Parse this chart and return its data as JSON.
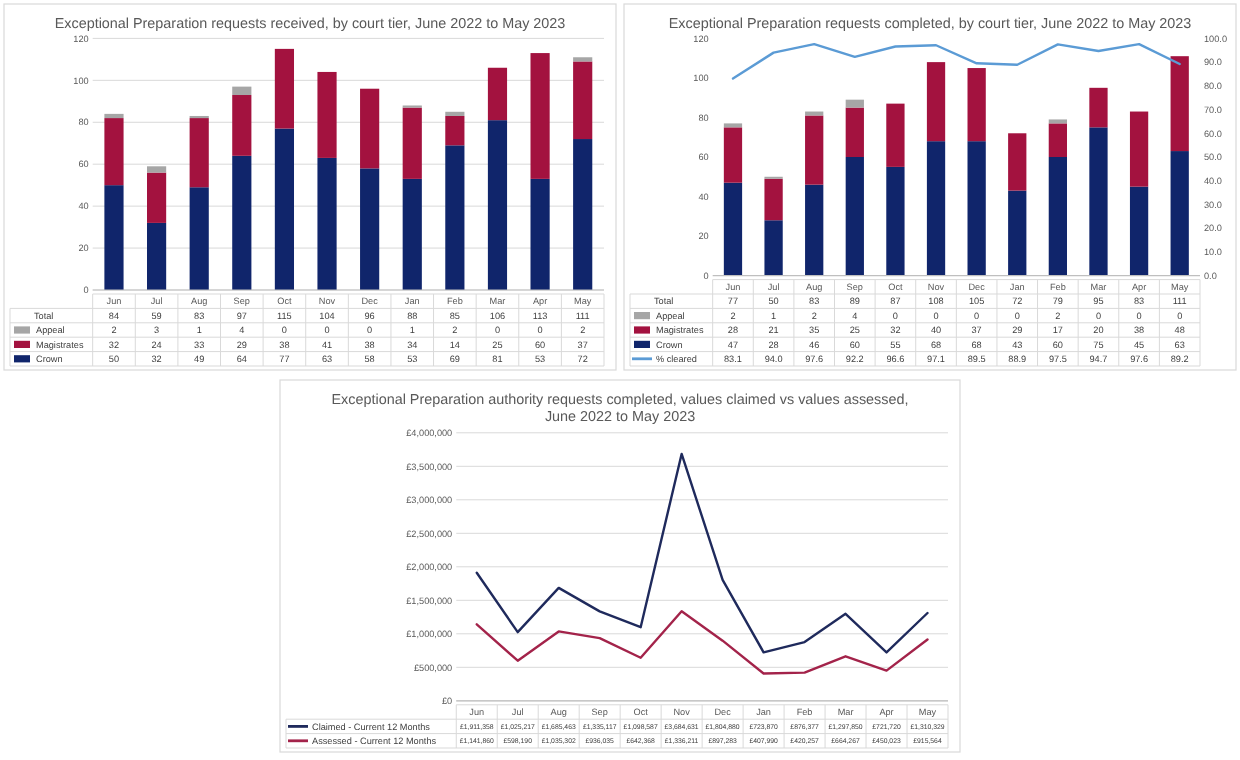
{
  "chart_data": [
    {
      "type": "bar",
      "stacked": true,
      "title": "Exceptional Preparation requests received, by court tier, June 2022 to May 2023",
      "categories": [
        "Jun",
        "Jul",
        "Aug",
        "Sep",
        "Oct",
        "Nov",
        "Dec",
        "Jan",
        "Feb",
        "Mar",
        "Apr",
        "May"
      ],
      "ylim": [
        0,
        120
      ],
      "yticks": [
        0,
        20,
        40,
        60,
        80,
        100,
        120
      ],
      "grid": "y",
      "legend": "bottom",
      "data_labels": true,
      "annotations": [
        "Total"
      ],
      "totals": [
        "84",
        "59",
        "83",
        "97",
        "115",
        "104",
        "96",
        "88",
        "85",
        "106",
        "113",
        "111"
      ],
      "series": [
        {
          "name": "Crown",
          "color": "#10256b",
          "values": [
            50,
            32,
            49,
            64,
            77,
            63,
            58,
            53,
            69,
            81,
            53,
            72
          ]
        },
        {
          "name": "Magistrates",
          "color": "#a3123f",
          "values": [
            32,
            24,
            33,
            29,
            38,
            41,
            38,
            34,
            14,
            25,
            60,
            37
          ]
        },
        {
          "name": "Appeal",
          "color": "#a6a6a6",
          "values": [
            2,
            3,
            1,
            4,
            0,
            0,
            0,
            1,
            2,
            0,
            0,
            2
          ]
        }
      ]
    },
    {
      "type": "bar",
      "stacked": true,
      "title": "Exceptional Preparation requests completed, by court tier, June 2022 to May 2023",
      "categories": [
        "Jun",
        "Jul",
        "Aug",
        "Sep",
        "Oct",
        "Nov",
        "Dec",
        "Jan",
        "Feb",
        "Mar",
        "Apr",
        "May"
      ],
      "ylim": [
        0,
        120
      ],
      "yticks": [
        0,
        20,
        40,
        60,
        80,
        100,
        120
      ],
      "y2lim": [
        0,
        100
      ],
      "y2ticks": [
        {
          "value": 0,
          "label": "0.0"
        },
        {
          "value": 10,
          "label": "10.0"
        },
        {
          "value": 20,
          "label": "20.0"
        },
        {
          "value": 30,
          "label": "30.0"
        },
        {
          "value": 40,
          "label": "40.0"
        },
        {
          "value": 50,
          "label": "50.0"
        },
        {
          "value": 60,
          "label": "60.0"
        },
        {
          "value": 70,
          "label": "70.0"
        },
        {
          "value": 80,
          "label": "80.0"
        },
        {
          "value": 90,
          "label": "90.0"
        },
        {
          "value": 100,
          "label": "100.0"
        }
      ],
      "legend": "bottom",
      "data_labels": true,
      "annotations": [
        "Total"
      ],
      "totals": [
        "77",
        "50",
        "83",
        "89",
        "87",
        "108",
        "105",
        "72",
        "79",
        "95",
        "83",
        "111"
      ],
      "series": [
        {
          "name": "Crown",
          "color": "#10256b",
          "values": [
            47,
            28,
            46,
            60,
            55,
            68,
            68,
            43,
            60,
            75,
            45,
            63
          ]
        },
        {
          "name": "Magistrates",
          "color": "#a3123f",
          "values": [
            28,
            21,
            35,
            25,
            32,
            40,
            37,
            29,
            17,
            20,
            38,
            48
          ]
        },
        {
          "name": "Appeal",
          "color": "#a6a6a6",
          "values": [
            2,
            1,
            2,
            4,
            0,
            0,
            0,
            0,
            2,
            0,
            0,
            0
          ]
        },
        {
          "name": "% cleared",
          "type": "line",
          "axis": "y2",
          "color": "#5b9bd5",
          "values": [
            83.1,
            94,
            97.6,
            92.2,
            96.6,
            97.1,
            89.5,
            88.9,
            97.5,
            94.7,
            97.6,
            89.2
          ],
          "value_labels": [
            "83.1",
            "94.0",
            "97.6",
            "92.2",
            "96.6",
            "97.1",
            "89.5",
            "88.9",
            "97.5",
            "94.7",
            "97.6",
            "89.2"
          ]
        }
      ]
    },
    {
      "type": "line",
      "title": "Exceptional Preparation authority requests completed, values claimed vs values assessed, June 2022 to May 2023",
      "categories": [
        "Jun",
        "Jul",
        "Aug",
        "Sep",
        "Oct",
        "Nov",
        "Dec",
        "Jan",
        "Feb",
        "Mar",
        "Apr",
        "May"
      ],
      "ylim": [
        0,
        4000000
      ],
      "yticks": [
        {
          "value": 0,
          "label": "£0"
        },
        {
          "value": 500000,
          "label": "£500,000"
        },
        {
          "value": 1000000,
          "label": "£1,000,000"
        },
        {
          "value": 1500000,
          "label": "£1,500,000"
        },
        {
          "value": 2000000,
          "label": "£2,000,000"
        },
        {
          "value": 2500000,
          "label": "£2,500,000"
        },
        {
          "value": 3000000,
          "label": "£3,000,000"
        },
        {
          "value": 3500000,
          "label": "£3,500,000"
        },
        {
          "value": 4000000,
          "label": "£4,000,000"
        }
      ],
      "grid": "y",
      "legend": "bottom",
      "series": [
        {
          "name": "Claimed - Current 12 Months",
          "color": "#1f2a5c",
          "values": [
            1911358,
            1025217,
            1685463,
            1335117,
            1098587,
            3684631,
            1804880,
            723870,
            876377,
            1297850,
            721720,
            1310329
          ],
          "value_labels": [
            "£1,911,358",
            "£1,025,217",
            "£1,685,463",
            "£1,335,117",
            "£1,098,587",
            "£3,684,631",
            "£1,804,880",
            "£723,870",
            "£876,377",
            "£1,297,850",
            "£721,720",
            "£1,310,329"
          ]
        },
        {
          "name": "Assessed - Current 12 Months",
          "color": "#a3234a",
          "values": [
            1141860,
            598190,
            1035302,
            936035,
            642368,
            1336211,
            897283,
            407990,
            420257,
            664267,
            450023,
            915564
          ],
          "value_labels": [
            "£1,141,860",
            "£598,190",
            "£1,035,302",
            "£936,035",
            "£642,368",
            "£1,336,211",
            "£897,283",
            "£407,990",
            "£420,257",
            "£664,267",
            "£450,023",
            "£915,564"
          ]
        }
      ]
    }
  ]
}
